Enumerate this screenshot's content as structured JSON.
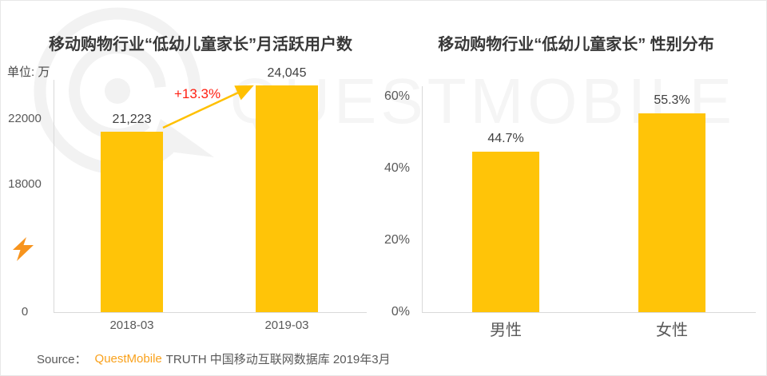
{
  "watermark": {
    "text": "QUESTMOBILE",
    "logo_icon": "questmobile-q-logo"
  },
  "colors": {
    "bar_yellow": "#FFC408",
    "arrow_gold": "#FFC000",
    "growth_red": "#FF2012",
    "brand_orange": "#F9A11B",
    "axis_gray": "#D9D9D9",
    "watermark_gray": "#F2F2F2"
  },
  "chart_data": [
    {
      "type": "bar",
      "title": "移动购物行业“低幼儿童家长”月活跃用户数",
      "unit_label": "单位: 万",
      "categories": [
        "2018-03",
        "2019-03"
      ],
      "values": [
        21223,
        24045
      ],
      "value_labels": [
        "21,223",
        "24,045"
      ],
      "ytick_values": [
        0,
        18000,
        22000
      ],
      "ytick_labels": [
        "0",
        "18000",
        "22000"
      ],
      "annotation": "+13.3%",
      "axis_note": "truncated y-axis with scale break between 0 and 18000",
      "legend": "none",
      "grid": "off"
    },
    {
      "type": "bar",
      "title": "移动购物行业“低幼儿童家长” 性别分布",
      "categories": [
        "男性",
        "女性"
      ],
      "values": [
        44.7,
        55.3
      ],
      "value_labels": [
        "44.7%",
        "55.3%"
      ],
      "ytick_values": [
        0,
        20,
        40,
        60
      ],
      "ytick_labels": [
        "0%",
        "20%",
        "40%",
        "60%"
      ],
      "ylim": [
        0,
        62
      ],
      "legend": "none",
      "grid": "off"
    }
  ],
  "source": {
    "prefix": "Source：",
    "brand": "QuestMobile",
    "suffix": "TRUTH 中国移动互联网数据库 2019年3月"
  }
}
